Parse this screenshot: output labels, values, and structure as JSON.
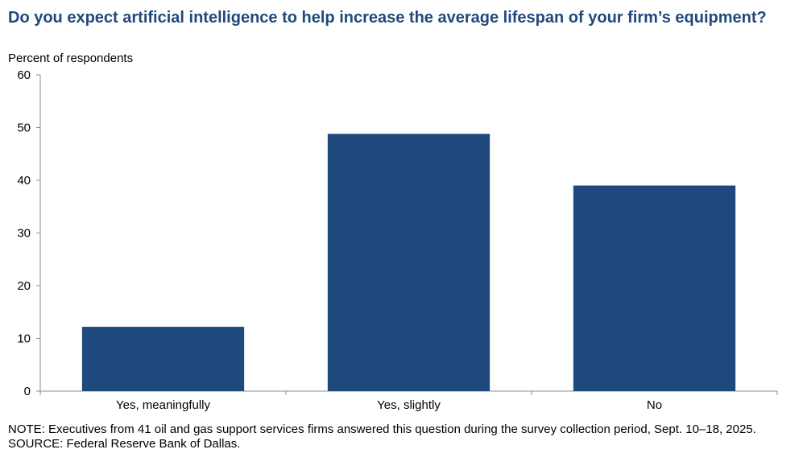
{
  "chart_data": {
    "type": "bar",
    "title": "Do you expect artificial intelligence to help increase the average lifespan of your firm’s equipment?",
    "ylabel": "Percent of respondents",
    "xlabel": "",
    "categories": [
      "Yes, meaningfully",
      "Yes, slightly",
      "No"
    ],
    "values": [
      12.2,
      48.8,
      39.0
    ],
    "ylim": [
      0,
      60
    ],
    "yticks": [
      0,
      10,
      20,
      30,
      40,
      50,
      60
    ],
    "grid": false,
    "bar_color": "#1f497d"
  },
  "notes": {
    "note": "NOTE: Executives from 41 oil and gas support services firms answered this question during the survey collection period, Sept. 10–18, 2025.",
    "source": "SOURCE: Federal Reserve Bank of Dallas."
  }
}
